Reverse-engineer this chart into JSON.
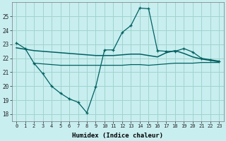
{
  "xlabel": "Humidex (Indice chaleur)",
  "bg_color": "#c8eef0",
  "grid_color": "#a0d4cc",
  "line_color": "#006060",
  "xlim": [
    -0.5,
    23.5
  ],
  "ylim": [
    17.5,
    26.0
  ],
  "yticks": [
    18,
    19,
    20,
    21,
    22,
    23,
    24,
    25
  ],
  "xticks": [
    0,
    1,
    2,
    3,
    4,
    5,
    6,
    7,
    8,
    9,
    10,
    11,
    12,
    13,
    14,
    15,
    16,
    17,
    18,
    19,
    20,
    21,
    22,
    23
  ],
  "line1_x": [
    0,
    1,
    2,
    3,
    4,
    5,
    6,
    7,
    8,
    9,
    10,
    11,
    12,
    13,
    14,
    15,
    16,
    17,
    18,
    19,
    20,
    21,
    22,
    23
  ],
  "line1_y": [
    23.1,
    22.7,
    21.65,
    20.9,
    20.0,
    19.5,
    19.1,
    18.85,
    18.1,
    19.95,
    22.6,
    22.6,
    23.85,
    24.35,
    25.6,
    25.55,
    22.55,
    22.5,
    22.5,
    22.7,
    22.45,
    22.0,
    21.9,
    21.8
  ],
  "line2_x": [
    0,
    1,
    2,
    3,
    4,
    5,
    6,
    7,
    8,
    9,
    10,
    11,
    12,
    13,
    14,
    15,
    16,
    17,
    18,
    19,
    20,
    21,
    22,
    23
  ],
  "line2_y": [
    22.75,
    22.65,
    22.55,
    22.5,
    22.45,
    22.4,
    22.35,
    22.3,
    22.25,
    22.2,
    22.2,
    22.2,
    22.25,
    22.3,
    22.3,
    22.2,
    22.1,
    22.4,
    22.55,
    22.35,
    22.1,
    21.95,
    21.85,
    21.75
  ],
  "line3_x": [
    2,
    3,
    4,
    5,
    6,
    7,
    8,
    9,
    10,
    11,
    12,
    13,
    14,
    15,
    16,
    17,
    18,
    19,
    20,
    21,
    22,
    23
  ],
  "line3_y": [
    21.65,
    21.6,
    21.55,
    21.5,
    21.5,
    21.5,
    21.5,
    21.5,
    21.5,
    21.5,
    21.5,
    21.55,
    21.55,
    21.5,
    21.55,
    21.6,
    21.65,
    21.65,
    21.65,
    21.7,
    21.7,
    21.7
  ]
}
